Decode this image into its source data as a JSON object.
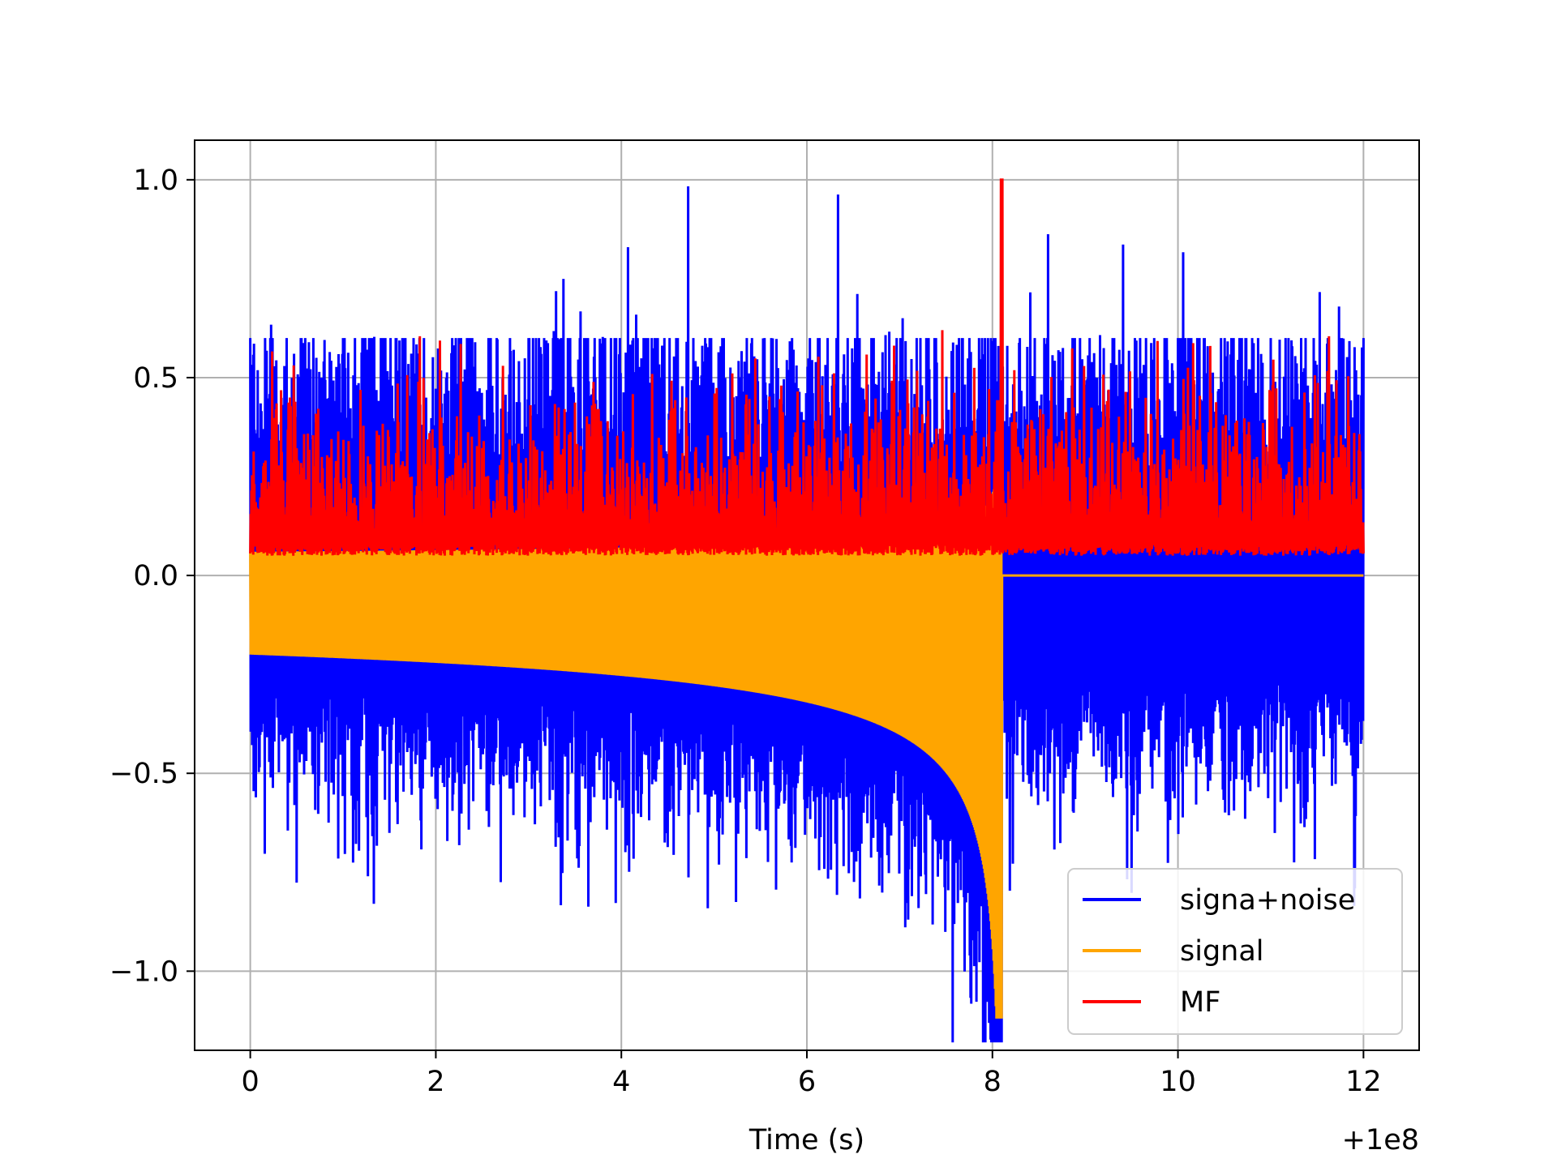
{
  "chart_data": {
    "type": "line",
    "xlabel": "Time (s)",
    "ylabel": "",
    "title": "",
    "x_offset_label": "+1e8",
    "xlim": [
      -0.6,
      12.6
    ],
    "ylim": [
      -1.2,
      1.1
    ],
    "xticks": [
      0,
      2,
      4,
      6,
      8,
      10,
      12
    ],
    "xtick_labels": [
      "0",
      "2",
      "4",
      "6",
      "8",
      "10",
      "12"
    ],
    "yticks": [
      -1.0,
      -0.5,
      0.0,
      0.5,
      1.0
    ],
    "ytick_labels": [
      "−1.0",
      "−0.5",
      "0.0",
      "0.5",
      "1.0"
    ],
    "grid": true,
    "legend_position": "lower-right",
    "series": [
      {
        "name": "signa+noise",
        "color": "#0000ff",
        "x_range": [
          0,
          12
        ],
        "y_min_approx": -1.18,
        "y_max_approx": 1.0,
        "description": "noise envelope roughly -0.6..0.6 with spikes; offset by chirp until merger at ~8.1"
      },
      {
        "name": "signal",
        "color": "#ffa500",
        "x_range": [
          0,
          12
        ],
        "merger_time": 8.1,
        "envelope_lower_start": -0.2,
        "envelope_lower_end": -0.55,
        "min_value": -1.12,
        "post_merger_value": 0.0
      },
      {
        "name": "MF",
        "color": "#ff0000",
        "x_range": [
          0,
          12
        ],
        "baseline": 0.05,
        "typical_upper": 0.45,
        "peak_time": 8.1,
        "peak_value": 1.0
      }
    ]
  }
}
